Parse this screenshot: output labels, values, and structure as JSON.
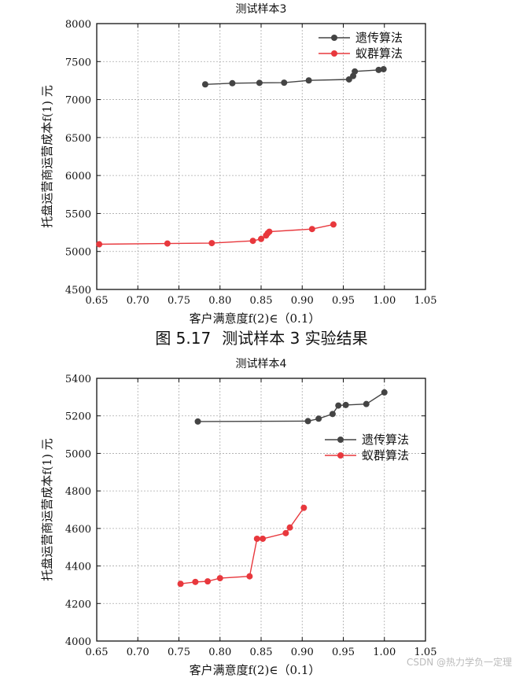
{
  "caption": {
    "prefix": "图 5.17",
    "text": "测试样本 3 实验结果"
  },
  "watermark": "CSDN @热力学负一定理",
  "colors": {
    "ga": "#444444",
    "aco": "#e8383d",
    "grid": "#aaaaaa",
    "axis": "#111111"
  },
  "chart_data": [
    {
      "type": "line",
      "title": "测试样本3",
      "xlabel": "客户满意度f(2)∈（0.1）",
      "ylabel": "托盘运营商运营成本f(1) 元",
      "xlim": [
        0.65,
        1.05
      ],
      "ylim": [
        4500,
        8000
      ],
      "xticks": [
        0.65,
        0.7,
        0.75,
        0.8,
        0.85,
        0.9,
        0.95,
        1.0,
        1.05
      ],
      "xtick_labels": [
        "0.65",
        "0.70",
        "0.75",
        "0.80",
        "0.85",
        "0.90",
        "0.95",
        "1.00",
        "1.05"
      ],
      "yticks": [
        4500,
        5000,
        5500,
        6000,
        6500,
        7000,
        7500,
        8000
      ],
      "ytick_labels": [
        "4500",
        "5000",
        "5500",
        "6000",
        "6500",
        "7000",
        "7500",
        "8000"
      ],
      "grid": true,
      "legend_position": "top-right",
      "series": [
        {
          "name": "遗传算法",
          "color": "#444444",
          "x": [
            0.782,
            0.815,
            0.848,
            0.878,
            0.908,
            0.957,
            0.962,
            0.964,
            0.993,
            0.999
          ],
          "y": [
            7200,
            7215,
            7220,
            7222,
            7252,
            7265,
            7310,
            7370,
            7390,
            7400
          ]
        },
        {
          "name": "蚁群算法",
          "color": "#e8383d",
          "x": [
            0.653,
            0.736,
            0.79,
            0.84,
            0.85,
            0.856,
            0.858,
            0.86,
            0.912,
            0.938
          ],
          "y": [
            5095,
            5105,
            5110,
            5140,
            5165,
            5210,
            5240,
            5260,
            5295,
            5355
          ]
        }
      ]
    },
    {
      "type": "line",
      "title": "测试样本4",
      "xlabel": "客户满意度f(2)∈（0.1）",
      "ylabel": "托盘运营商运营成本f(1) 元",
      "xlim": [
        0.65,
        1.05
      ],
      "ylim": [
        4000,
        5400
      ],
      "xticks": [
        0.65,
        0.7,
        0.75,
        0.8,
        0.85,
        0.9,
        0.95,
        1.0,
        1.05
      ],
      "xtick_labels": [
        "0.65",
        "0.70",
        "0.75",
        "0.80",
        "0.85",
        "0.90",
        "0.95",
        "1.00",
        "1.05"
      ],
      "yticks": [
        4000,
        4200,
        4400,
        4600,
        4800,
        5000,
        5200,
        5400
      ],
      "ytick_labels": [
        "4000",
        "4200",
        "4400",
        "4600",
        "4800",
        "5000",
        "5200",
        "5400"
      ],
      "grid": true,
      "legend_position": "right",
      "series": [
        {
          "name": "遗传算法",
          "color": "#444444",
          "x": [
            0.773,
            0.907,
            0.92,
            0.937,
            0.944,
            0.953,
            0.978,
            1.0
          ],
          "y": [
            5170,
            5172,
            5185,
            5210,
            5255,
            5258,
            5263,
            5325
          ]
        },
        {
          "name": "蚁群算法",
          "color": "#e8383d",
          "x": [
            0.752,
            0.77,
            0.785,
            0.8,
            0.836,
            0.845,
            0.852,
            0.88,
            0.885,
            0.902
          ],
          "y": [
            4305,
            4315,
            4318,
            4335,
            4345,
            4545,
            4545,
            4575,
            4605,
            4710
          ]
        }
      ]
    }
  ]
}
